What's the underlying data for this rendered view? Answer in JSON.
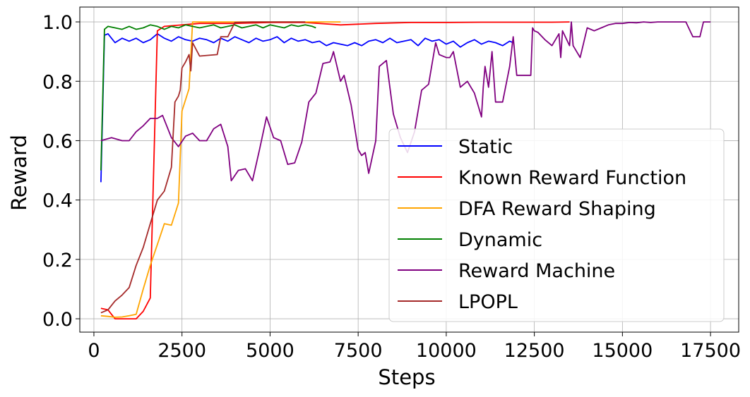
{
  "chart_data": {
    "type": "line",
    "title": "",
    "xlabel": "Steps",
    "ylabel": "Reward",
    "xlim": [
      -400,
      18300
    ],
    "ylim": [
      -0.045,
      1.05
    ],
    "xticks": [
      0,
      2500,
      5000,
      7500,
      10000,
      12500,
      15000,
      17500
    ],
    "xtick_labels": [
      "0",
      "2500",
      "5000",
      "7500",
      "10000",
      "12500",
      "15000",
      "17500"
    ],
    "yticks": [
      0.0,
      0.2,
      0.4,
      0.6,
      0.8,
      1.0
    ],
    "ytick_labels": [
      "0.0",
      "0.2",
      "0.4",
      "0.6",
      "0.8",
      "1.0"
    ],
    "grid": true,
    "legend_position": "lower-right",
    "series": [
      {
        "name": "Static",
        "color": "#0000ff",
        "x": [
          200,
          300,
          400,
          600,
          800,
          1000,
          1200,
          1400,
          1600,
          1800,
          2000,
          2200,
          2400,
          2600,
          2800,
          3000,
          3200,
          3400,
          3600,
          3800,
          4000,
          4200,
          4400,
          4600,
          4800,
          5000,
          5200,
          5400,
          5600,
          5800,
          6000,
          6200,
          6400,
          6600,
          6800,
          7000,
          7200,
          7400,
          7600,
          7800,
          8000,
          8200,
          8400,
          8600,
          8800,
          9000,
          9200,
          9400,
          9600,
          9800,
          10000,
          10200,
          10400,
          10600,
          10800,
          11000,
          11200,
          11400,
          11600,
          11800,
          11900
        ],
        "y": [
          0.46,
          0.955,
          0.96,
          0.93,
          0.945,
          0.935,
          0.945,
          0.93,
          0.94,
          0.96,
          0.945,
          0.935,
          0.95,
          0.94,
          0.935,
          0.945,
          0.94,
          0.93,
          0.945,
          0.935,
          0.95,
          0.94,
          0.93,
          0.945,
          0.935,
          0.94,
          0.95,
          0.93,
          0.945,
          0.935,
          0.94,
          0.93,
          0.935,
          0.92,
          0.93,
          0.925,
          0.92,
          0.93,
          0.92,
          0.935,
          0.94,
          0.93,
          0.945,
          0.93,
          0.935,
          0.94,
          0.92,
          0.945,
          0.935,
          0.94,
          0.925,
          0.935,
          0.915,
          0.93,
          0.94,
          0.925,
          0.935,
          0.93,
          0.92,
          0.935,
          0.93
        ]
      },
      {
        "name": "Known Reward Function",
        "color": "#ff0000",
        "x": [
          200,
          400,
          600,
          800,
          1000,
          1200,
          1400,
          1600,
          1800,
          2000,
          2500,
          3000,
          4000,
          5000,
          6000,
          7000,
          8000,
          9000,
          10000,
          11000,
          12000,
          13000,
          13500
        ],
        "y": [
          0.035,
          0.03,
          0.0,
          0.0,
          0.0,
          0.0,
          0.025,
          0.07,
          0.97,
          0.985,
          0.99,
          0.995,
          0.995,
          0.998,
          0.998,
          0.99,
          0.995,
          0.998,
          0.998,
          0.999,
          0.999,
          0.999,
          1.0
        ]
      },
      {
        "name": "DFA Reward Shaping",
        "color": "#ffa500",
        "x": [
          200,
          400,
          600,
          800,
          1000,
          1200,
          1400,
          1600,
          1800,
          2000,
          2200,
          2400,
          2500,
          2700,
          2800,
          3000,
          3500,
          4000,
          5000,
          6000,
          7000
        ],
        "y": [
          0.01,
          0.008,
          0.005,
          0.006,
          0.01,
          0.015,
          0.1,
          0.18,
          0.25,
          0.32,
          0.315,
          0.39,
          0.7,
          0.775,
          1.0,
          1.0,
          1.0,
          1.0,
          1.0,
          1.0,
          1.0
        ]
      },
      {
        "name": "Dynamic",
        "color": "#008000",
        "x": [
          200,
          300,
          400,
          600,
          800,
          1000,
          1200,
          1400,
          1600,
          1800,
          2000,
          2200,
          2400,
          2600,
          2800,
          3000,
          3200,
          3400,
          3600,
          3800,
          4000,
          4200,
          4400,
          4600,
          4800,
          5000,
          5200,
          5400,
          5600,
          5800,
          6000,
          6200,
          6300
        ],
        "y": [
          0.5,
          0.975,
          0.985,
          0.98,
          0.975,
          0.985,
          0.975,
          0.98,
          0.99,
          0.985,
          0.975,
          0.985,
          0.98,
          0.99,
          0.985,
          0.98,
          0.985,
          0.99,
          0.98,
          0.985,
          0.99,
          0.98,
          0.985,
          0.99,
          0.98,
          0.99,
          0.985,
          0.98,
          0.99,
          0.985,
          0.99,
          0.985,
          0.98
        ]
      },
      {
        "name": "Reward Machine",
        "color": "#800080",
        "x": [
          200,
          500,
          800,
          1000,
          1200,
          1400,
          1600,
          1800,
          1950,
          2200,
          2400,
          2600,
          2800,
          3000,
          3200,
          3400,
          3600,
          3800,
          3900,
          4100,
          4300,
          4500,
          4700,
          4900,
          5100,
          5300,
          5500,
          5700,
          5900,
          6100,
          6300,
          6500,
          6700,
          6750,
          6800,
          7000,
          7100,
          7300,
          7500,
          7600,
          7700,
          7800,
          8000,
          8100,
          8300,
          8500,
          8700,
          8900,
          9100,
          9300,
          9500,
          9700,
          9800,
          10000,
          10100,
          10200,
          10400,
          10600,
          10800,
          11000,
          11050,
          11100,
          11200,
          11300,
          11400,
          11600,
          11800,
          11850,
          11900,
          12000,
          12200,
          12400,
          12450,
          12500,
          12600,
          12800,
          13000,
          13200,
          13250,
          13300,
          13500,
          13550,
          13600,
          13800,
          14000,
          14200,
          14400,
          14600,
          14800,
          15000,
          15200,
          15400,
          15600,
          15800,
          16000,
          16200,
          16400,
          16600,
          16800,
          17000,
          17200,
          17300,
          17500
        ],
        "y": [
          0.6,
          0.61,
          0.6,
          0.6,
          0.63,
          0.65,
          0.675,
          0.675,
          0.685,
          0.61,
          0.58,
          0.615,
          0.625,
          0.6,
          0.6,
          0.64,
          0.655,
          0.58,
          0.465,
          0.5,
          0.505,
          0.465,
          0.57,
          0.68,
          0.61,
          0.6,
          0.52,
          0.525,
          0.595,
          0.73,
          0.76,
          0.86,
          0.865,
          0.88,
          0.9,
          0.8,
          0.82,
          0.72,
          0.57,
          0.55,
          0.56,
          0.49,
          0.6,
          0.85,
          0.87,
          0.69,
          0.61,
          0.56,
          0.63,
          0.77,
          0.79,
          0.93,
          0.89,
          0.88,
          0.88,
          0.9,
          0.78,
          0.8,
          0.76,
          0.68,
          0.78,
          0.85,
          0.78,
          0.9,
          0.73,
          0.73,
          0.85,
          0.9,
          0.95,
          0.82,
          0.82,
          0.82,
          0.98,
          0.97,
          0.965,
          0.94,
          0.92,
          0.96,
          0.88,
          0.97,
          0.92,
          1.0,
          0.92,
          0.88,
          0.98,
          0.97,
          0.98,
          0.99,
          0.995,
          0.995,
          0.998,
          0.997,
          1.0,
          0.998,
          1.0,
          1.0,
          1.0,
          1.0,
          1.0,
          0.95,
          0.95,
          1.0,
          1.0
        ]
      },
      {
        "name": "LPOPL",
        "color": "#a52a2a",
        "x": [
          200,
          400,
          600,
          800,
          1000,
          1200,
          1400,
          1600,
          1800,
          2000,
          2200,
          2300,
          2400,
          2450,
          2500,
          2600,
          2700,
          2750,
          2800,
          3000,
          3500,
          3600,
          3700,
          3800,
          4000,
          4500,
          5000,
          6000
        ],
        "y": [
          0.02,
          0.03,
          0.06,
          0.08,
          0.105,
          0.18,
          0.24,
          0.32,
          0.4,
          0.43,
          0.51,
          0.73,
          0.75,
          0.77,
          0.845,
          0.865,
          0.89,
          0.835,
          0.93,
          0.885,
          0.89,
          0.95,
          0.95,
          0.95,
          0.998,
          1.0,
          1.0,
          1.0
        ]
      }
    ]
  }
}
